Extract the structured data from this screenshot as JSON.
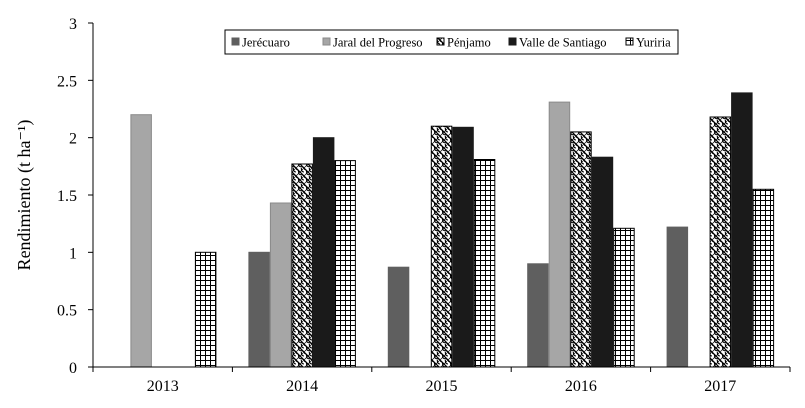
{
  "chart_data": {
    "type": "bar",
    "title": "",
    "xlabel": "",
    "ylabel": "Rendimiento (t ha⁻¹)",
    "ylim": [
      0,
      3
    ],
    "yticks": [
      "0",
      "0.5",
      "1",
      "1.5",
      "2",
      "2.5",
      "3"
    ],
    "categories": [
      "2013",
      "2014",
      "2015",
      "2016",
      "2017"
    ],
    "legend_position": "top-center",
    "series": [
      {
        "name": "Jerécuaro",
        "pattern": "solid-dark-gray",
        "color": "#5f5f5f",
        "values": [
          null,
          1.0,
          0.87,
          0.9,
          1.22
        ]
      },
      {
        "name": "Jaral del Progreso",
        "pattern": "solid-light-gray",
        "color": "#a6a6a6",
        "values": [
          2.2,
          1.43,
          null,
          2.31,
          null
        ]
      },
      {
        "name": "Pénjamo",
        "pattern": "wave-hatch",
        "color": "#000000",
        "values": [
          null,
          1.77,
          2.1,
          2.05,
          2.18
        ]
      },
      {
        "name": "Valle de Santiago",
        "pattern": "solid-black",
        "color": "#1a1a1a",
        "values": [
          null,
          2.0,
          2.09,
          1.83,
          2.39
        ]
      },
      {
        "name": "Yuriria",
        "pattern": "grid-hatch",
        "color": "#000000",
        "values": [
          1.0,
          1.8,
          1.81,
          1.21,
          1.55
        ]
      }
    ]
  }
}
